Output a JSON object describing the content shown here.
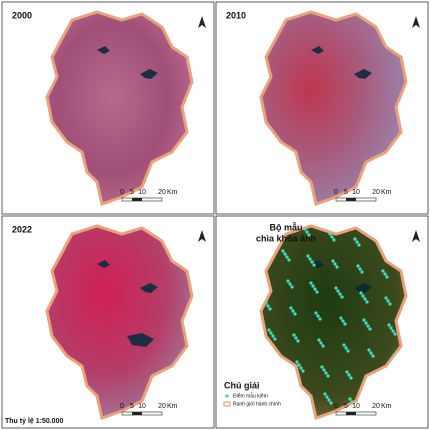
{
  "panels": [
    {
      "label": "2000",
      "scale_bar": {
        "ticks": [
          "0",
          "5",
          "10",
          "20"
        ],
        "unit": "Km"
      }
    },
    {
      "label": "2010",
      "scale_bar": {
        "ticks": [
          "0",
          "5",
          "10",
          "20"
        ],
        "unit": "Km"
      }
    },
    {
      "label": "2022",
      "scale_bar": {
        "ticks": [
          "0",
          "5",
          "10",
          "20"
        ],
        "unit": "Km"
      },
      "scale_note": "Thu tỷ lệ 1:50.000"
    },
    {
      "title_lines": [
        "Bộ mẫu",
        "chìa khóa ảnh"
      ],
      "scale_bar": {
        "ticks": [
          "0",
          "5",
          "10",
          "20"
        ],
        "unit": "Km"
      },
      "legend": {
        "title": "Chú giải",
        "items": [
          "Điểm mẫu kiểm",
          "Ranh giới hành chính"
        ]
      }
    }
  ]
}
